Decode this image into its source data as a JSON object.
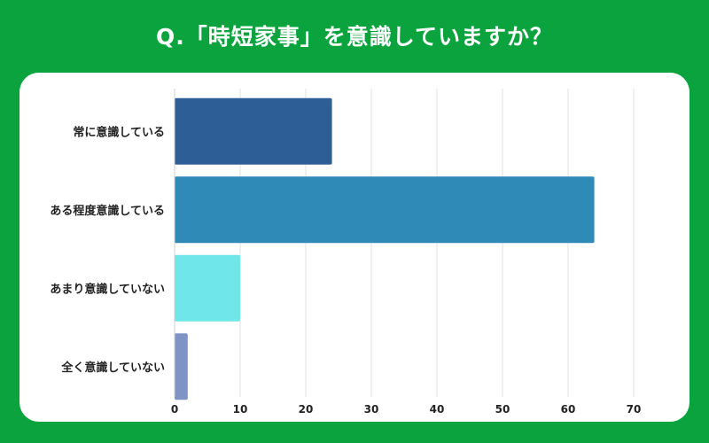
{
  "title": "Q.「時短家事」を意識していますか？",
  "chart_data": {
    "type": "bar",
    "orientation": "horizontal",
    "categories": [
      "常に意識している",
      "ある程度意識している",
      "あまり意識していない",
      "全く意識していない"
    ],
    "values": [
      24,
      64,
      10,
      2
    ],
    "colors": [
      "#2d5f96",
      "#2f8ab8",
      "#6ee6ea",
      "#7f93c6"
    ],
    "xlim": [
      0,
      70
    ],
    "xticks": [
      0,
      10,
      20,
      30,
      40,
      50,
      60,
      70
    ],
    "grid": true,
    "title": "",
    "xlabel": "",
    "ylabel": ""
  }
}
